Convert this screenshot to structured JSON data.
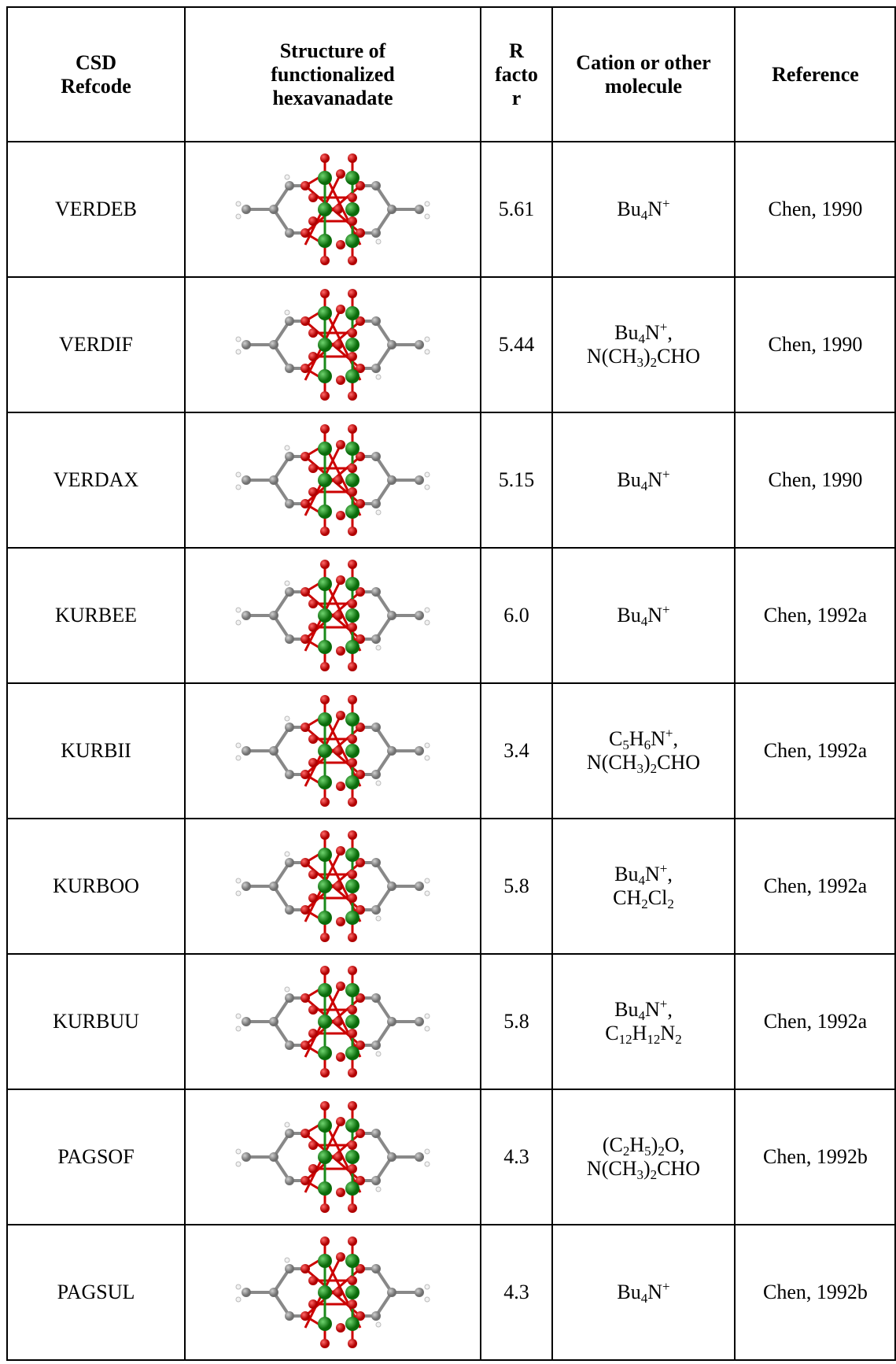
{
  "table": {
    "header": [
      [
        "CSD",
        "Refcode"
      ],
      [
        "Structure of",
        "functionalized",
        "hexavanadate"
      ],
      [
        "R",
        "facto",
        "r"
      ],
      [
        "Cation or other",
        "molecule"
      ],
      [
        "Reference"
      ]
    ],
    "rows": [
      {
        "refcode": "VERDEB",
        "r_factor": "5.61",
        "cation": [
          [
            {
              "text": "Bu"
            },
            {
              "sub": "4"
            },
            {
              "text": "N"
            },
            {
              "sup": "+"
            }
          ]
        ],
        "reference": "Chen, 1990"
      },
      {
        "refcode": "VERDIF",
        "r_factor": "5.44",
        "cation": [
          [
            {
              "text": "Bu"
            },
            {
              "sub": "4"
            },
            {
              "text": "N"
            },
            {
              "sup": "+"
            },
            {
              "text": ","
            }
          ],
          [
            {
              "text": "N(CH"
            },
            {
              "sub": "3"
            },
            {
              "text": ")"
            },
            {
              "sub": "2"
            },
            {
              "text": "CHO"
            }
          ]
        ],
        "reference": "Chen, 1990"
      },
      {
        "refcode": "VERDAX",
        "r_factor": "5.15",
        "cation": [
          [
            {
              "text": "Bu"
            },
            {
              "sub": "4"
            },
            {
              "text": "N"
            },
            {
              "sup": "+"
            }
          ]
        ],
        "reference": "Chen, 1990"
      },
      {
        "refcode": "KURBEE",
        "r_factor": "6.0",
        "cation": [
          [
            {
              "text": "Bu"
            },
            {
              "sub": "4"
            },
            {
              "text": "N"
            },
            {
              "sup": "+"
            }
          ]
        ],
        "reference": "Chen, 1992a"
      },
      {
        "refcode": "KURBII",
        "r_factor": "3.4",
        "cation": [
          [
            {
              "text": "C"
            },
            {
              "sub": "5"
            },
            {
              "text": "H"
            },
            {
              "sub": "6"
            },
            {
              "text": "N"
            },
            {
              "sup": "+"
            },
            {
              "text": ","
            }
          ],
          [
            {
              "text": "N(CH"
            },
            {
              "sub": "3"
            },
            {
              "text": ")"
            },
            {
              "sub": "2"
            },
            {
              "text": "CHO"
            }
          ]
        ],
        "reference": "Chen, 1992a"
      },
      {
        "refcode": "KURBOO",
        "r_factor": "5.8",
        "cation": [
          [
            {
              "text": "Bu"
            },
            {
              "sub": "4"
            },
            {
              "text": "N"
            },
            {
              "sup": "+"
            },
            {
              "text": ","
            }
          ],
          [
            {
              "text": "CH"
            },
            {
              "sub": "2"
            },
            {
              "text": "Cl"
            },
            {
              "sub": "2"
            }
          ]
        ],
        "reference": "Chen, 1992a"
      },
      {
        "refcode": "KURBUU",
        "r_factor": "5.8",
        "cation": [
          [
            {
              "text": "Bu"
            },
            {
              "sub": "4"
            },
            {
              "text": "N"
            },
            {
              "sup": "+"
            },
            {
              "text": ","
            }
          ],
          [
            {
              "text": "C"
            },
            {
              "sub": "12"
            },
            {
              "text": "H"
            },
            {
              "sub": "12"
            },
            {
              "text": "N"
            },
            {
              "sub": "2"
            }
          ]
        ],
        "reference": "Chen, 1992a"
      },
      {
        "refcode": "PAGSOF",
        "r_factor": "4.3",
        "cation": [
          [
            {
              "text": "(C"
            },
            {
              "sub": "2"
            },
            {
              "text": "H"
            },
            {
              "sub": "5"
            },
            {
              "text": ")"
            },
            {
              "sub": "2"
            },
            {
              "text": "O,"
            }
          ],
          [
            {
              "text": "N(CH"
            },
            {
              "sub": "3"
            },
            {
              "text": ")"
            },
            {
              "sub": "2"
            },
            {
              "text": "CHO"
            }
          ]
        ],
        "reference": "Chen, 1992b"
      },
      {
        "refcode": "PAGSUL",
        "r_factor": "4.3",
        "cation": [
          [
            {
              "text": "Bu"
            },
            {
              "sub": "4"
            },
            {
              "text": "N"
            },
            {
              "sup": "+"
            }
          ]
        ],
        "reference": "Chen, 1992b"
      }
    ]
  }
}
